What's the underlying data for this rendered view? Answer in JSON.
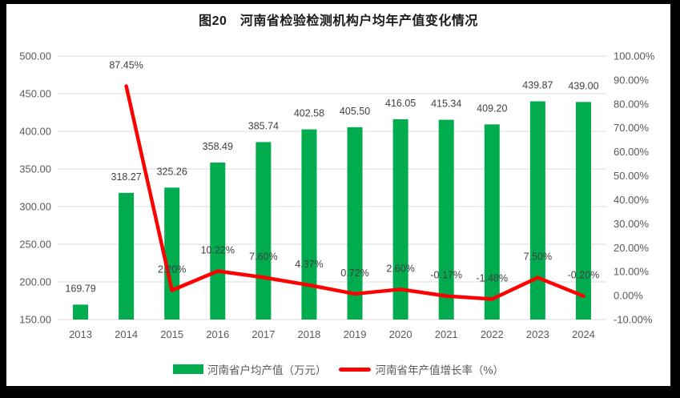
{
  "title": "图20　河南省检验检测机构户均年产值变化情况",
  "legend": [
    {
      "label": "河南省户均产值（万元）",
      "type": "bar",
      "color": "#00AC4E"
    },
    {
      "label": "河南省年产值增长率（%）",
      "type": "line",
      "color": "#FE0000"
    }
  ],
  "colors": {
    "bar": "#00AC4E",
    "line": "#FE0000",
    "gridline": "#E2E2E2",
    "axis_text": "#595959",
    "data_label": "#404040",
    "title_text": "#1A1A1A",
    "canvas_bg": "#FFFFFF",
    "page_bg": "#000000"
  },
  "chart_data": {
    "type": "bar+line",
    "title": "图20　河南省检验检测机构户均年产值变化情况",
    "categories": [
      "2013",
      "2014",
      "2015",
      "2016",
      "2017",
      "2018",
      "2019",
      "2020",
      "2021",
      "2022",
      "2023",
      "2024"
    ],
    "series": [
      {
        "name": "河南省户均产值（万元）",
        "type": "bar",
        "axis": "left",
        "color": "#00AC4E",
        "values": [
          169.79,
          318.27,
          325.26,
          358.49,
          385.74,
          402.58,
          405.5,
          416.05,
          415.34,
          409.2,
          439.87,
          439.0
        ],
        "labels": [
          "169.79",
          "318.27",
          "325.26",
          "358.49",
          "385.74",
          "402.58",
          "405.50",
          "416.05",
          "415.34",
          "409.20",
          "439.87",
          "439.00"
        ]
      },
      {
        "name": "河南省年产值增长率（%）",
        "type": "line",
        "axis": "right",
        "color": "#FE0000",
        "values": [
          null,
          87.45,
          2.2,
          10.22,
          7.6,
          4.37,
          0.72,
          2.6,
          -0.17,
          -1.48,
          7.5,
          -0.2
        ],
        "labels": [
          "",
          "87.45%",
          "2.20%",
          "10.22%",
          "7.60%",
          "4.37%",
          "0.72%",
          "2.60%",
          "-0.17%",
          "-1.48%",
          "7.50%",
          "-0.20%"
        ]
      }
    ],
    "left_axis": {
      "min": 150,
      "max": 500,
      "step": 50,
      "tick_labels": [
        "500.00",
        "450.00",
        "400.00",
        "350.00",
        "300.00",
        "250.00",
        "200.00",
        "150.00"
      ]
    },
    "right_axis": {
      "min": -10,
      "max": 100,
      "step": 10,
      "tick_labels": [
        "100.00%",
        "90.00%",
        "80.00%",
        "70.00%",
        "60.00%",
        "50.00%",
        "40.00%",
        "30.00%",
        "20.00%",
        "10.00%",
        "0.00%",
        "-10.00%"
      ]
    },
    "grid": true,
    "legend_position": "bottom"
  }
}
